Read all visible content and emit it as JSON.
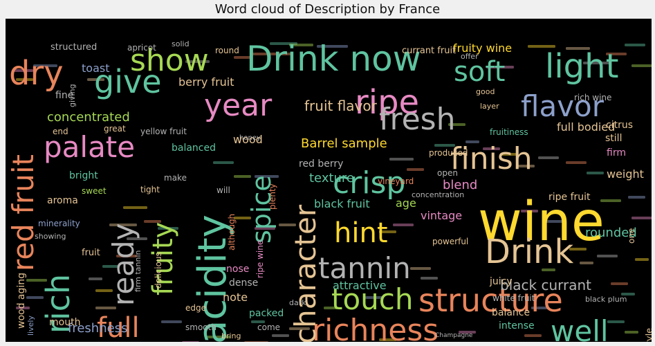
{
  "figure": {
    "title": "Word cloud of Description by France",
    "background": "#000000",
    "palette": {
      "orange": "#e8845b",
      "teal": "#5fc4a0",
      "green": "#a6d854",
      "blue": "#8da0cb",
      "pink": "#e78ac3",
      "yellow": "#ffd92f",
      "tan": "#e5c494",
      "gray": "#b3b3b3"
    }
  },
  "words": [
    {
      "text": "wine",
      "color": "yellow"
    },
    {
      "text": "Drink now",
      "color": "teal"
    },
    {
      "text": "acidity",
      "color": "teal"
    },
    {
      "text": "structure",
      "color": "orange"
    },
    {
      "text": "richness",
      "color": "orange"
    },
    {
      "text": "tannin",
      "color": "gray"
    },
    {
      "text": "Drink",
      "color": "tan"
    },
    {
      "text": "ripe",
      "color": "pink"
    },
    {
      "text": "fresh",
      "color": "gray"
    },
    {
      "text": "finish",
      "color": "tan"
    },
    {
      "text": "light",
      "color": "teal"
    },
    {
      "text": "soft",
      "color": "teal"
    },
    {
      "text": "flavor",
      "color": "blue"
    },
    {
      "text": "year",
      "color": "pink"
    },
    {
      "text": "show",
      "color": "green"
    },
    {
      "text": "give",
      "color": "teal"
    },
    {
      "text": "palate",
      "color": "pink"
    },
    {
      "text": "dry",
      "color": "orange"
    },
    {
      "text": "crisp",
      "color": "teal"
    },
    {
      "text": "hint",
      "color": "yellow"
    },
    {
      "text": "touch",
      "color": "green"
    },
    {
      "text": "full",
      "color": "orange"
    },
    {
      "text": "well",
      "color": "teal"
    },
    {
      "text": "character",
      "color": "tan"
    },
    {
      "text": "red fruit",
      "color": "orange"
    },
    {
      "text": "rich",
      "color": "teal"
    },
    {
      "text": "ready",
      "color": "gray"
    },
    {
      "text": "fruity",
      "color": "green"
    },
    {
      "text": "spice",
      "color": "teal"
    },
    {
      "text": "black currant",
      "color": "gray"
    },
    {
      "text": "fruit flavor",
      "color": "tan"
    },
    {
      "text": "Barrel sample",
      "color": "yellow"
    },
    {
      "text": "concentrated",
      "color": "green"
    },
    {
      "text": "berry fruit",
      "color": "tan"
    },
    {
      "text": "fruity wine",
      "color": "yellow"
    },
    {
      "text": "full bodied",
      "color": "tan"
    },
    {
      "text": "texture",
      "color": "teal"
    },
    {
      "text": "freshness",
      "color": "blue"
    },
    {
      "text": "blend",
      "color": "pink"
    },
    {
      "text": "red berry",
      "color": "gray"
    },
    {
      "text": "black fruit",
      "color": "teal"
    },
    {
      "text": "age",
      "color": "green"
    },
    {
      "text": "toast",
      "color": "blue"
    },
    {
      "text": "fine",
      "color": "gray"
    },
    {
      "text": "end",
      "color": "tan"
    },
    {
      "text": "great",
      "color": "tan"
    },
    {
      "text": "yellow fruit",
      "color": "gray"
    },
    {
      "text": "balanced",
      "color": "teal"
    },
    {
      "text": "wood",
      "color": "tan"
    },
    {
      "text": "citrus",
      "color": "tan"
    },
    {
      "text": "still",
      "color": "tan"
    },
    {
      "text": "layer",
      "color": "tan"
    },
    {
      "text": "good",
      "color": "tan"
    },
    {
      "text": "rich wine",
      "color": "gray"
    },
    {
      "text": "fruitiness",
      "color": "teal"
    },
    {
      "text": "firm",
      "color": "pink"
    },
    {
      "text": "weight",
      "color": "tan"
    },
    {
      "text": "ripe fruit",
      "color": "tan"
    },
    {
      "text": "rounded",
      "color": "teal"
    },
    {
      "text": "vintage",
      "color": "pink"
    },
    {
      "text": "concentration",
      "color": "gray"
    },
    {
      "text": "juicy",
      "color": "tan"
    },
    {
      "text": "attractive",
      "color": "teal"
    },
    {
      "text": "note",
      "color": "tan"
    },
    {
      "text": "nose",
      "color": "pink"
    },
    {
      "text": "dense",
      "color": "gray"
    },
    {
      "text": "packed",
      "color": "teal"
    },
    {
      "text": "mouth",
      "color": "tan"
    },
    {
      "text": "balance",
      "color": "tan"
    },
    {
      "text": "intense",
      "color": "teal"
    },
    {
      "text": "come",
      "color": "gray"
    },
    {
      "text": "powerful",
      "color": "tan"
    },
    {
      "text": "white fruit",
      "color": "gray"
    },
    {
      "text": "black plum",
      "color": "gray"
    },
    {
      "text": "style",
      "color": "tan"
    },
    {
      "text": "aroma",
      "color": "tan"
    },
    {
      "text": "bright",
      "color": "teal"
    },
    {
      "text": "sweet",
      "color": "green"
    },
    {
      "text": "tight",
      "color": "tan"
    },
    {
      "text": "minerality",
      "color": "blue"
    },
    {
      "text": "showing",
      "color": "gray"
    },
    {
      "text": "fruit",
      "color": "tan"
    },
    {
      "text": "delicious",
      "color": "tan"
    },
    {
      "text": "firm tannin",
      "color": "gray"
    },
    {
      "text": "wood aging",
      "color": "tan"
    },
    {
      "text": "lively",
      "color": "blue"
    },
    {
      "text": "edge",
      "color": "tan"
    },
    {
      "text": "smooth",
      "color": "gray"
    },
    {
      "text": "will",
      "color": "gray"
    },
    {
      "text": "make",
      "color": "gray"
    },
    {
      "text": "ripe wine",
      "color": "pink"
    },
    {
      "text": "although",
      "color": "orange"
    },
    {
      "text": "plenty",
      "color": "orange"
    },
    {
      "text": "vineyard",
      "color": "orange"
    },
    {
      "text": "open",
      "color": "gray"
    },
    {
      "text": "produced",
      "color": "tan"
    },
    {
      "text": "structured",
      "color": "gray"
    },
    {
      "text": "apricot",
      "color": "gray"
    },
    {
      "text": "solid",
      "color": "gray"
    },
    {
      "text": "currant fruit",
      "color": "tan"
    },
    {
      "text": "round",
      "color": "tan"
    },
    {
      "text": "honey",
      "color": "gray"
    },
    {
      "text": "giving",
      "color": "gray"
    },
    {
      "text": "offer",
      "color": "gray"
    },
    {
      "text": "Champagne",
      "color": "gray"
    },
    {
      "text": "bring",
      "color": "tan"
    },
    {
      "text": "dark",
      "color": "gray"
    },
    {
      "text": "one",
      "color": "tan"
    }
  ]
}
